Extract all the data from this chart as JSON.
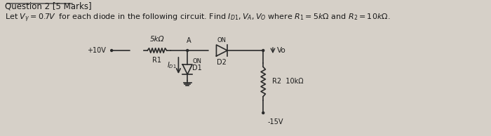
{
  "bg_color": "#d6d0c8",
  "title_text": "Question 2 [5 Marks]",
  "label_5k": "5kΩ",
  "label_R1": "R1",
  "label_R2": "R2",
  "label_D1": "D1",
  "label_D2": "D2",
  "label_A": "A",
  "label_ON1": "ON",
  "label_ON2": "ON",
  "label_10k": "10kΩ",
  "label_plus10": "+10V",
  "label_minus15": "-15V",
  "label_Vo": "Vo",
  "label_IDI": "$I_{D1}$",
  "circuit_color": "#2a2a2a",
  "font_color": "#1a1a1a"
}
